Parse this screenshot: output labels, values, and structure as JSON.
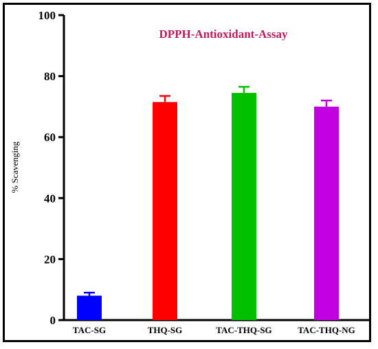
{
  "chart_data": {
    "type": "bar",
    "title": "DPPH-Antioxidant-Assay",
    "title_color": "#c0185a",
    "xlabel": "",
    "ylabel": "% Scavenging",
    "ylim": [
      0,
      100
    ],
    "yticks": [
      0,
      20,
      40,
      60,
      80,
      100
    ],
    "categories": [
      "TAC-SG",
      "THQ-SG",
      "TAC-THQ-SG",
      "TAC-THQ-NG"
    ],
    "values": [
      8,
      71.5,
      74.5,
      70
    ],
    "errors": [
      1,
      2,
      2,
      2
    ],
    "colors": [
      "#0000ff",
      "#ff0000",
      "#00c000",
      "#c000e0"
    ],
    "grid": false,
    "legend": "none"
  }
}
